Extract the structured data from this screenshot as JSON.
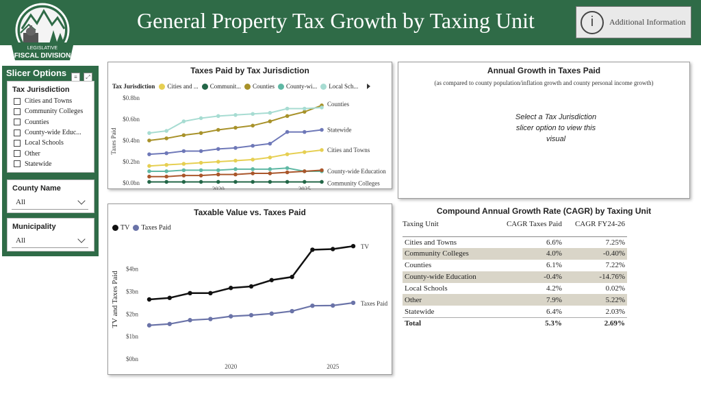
{
  "header": {
    "title": "General Property Tax Growth by Taxing Unit",
    "info_button_label": "Additional Information",
    "info_icon": "i",
    "logo_top": "LEGISLATIVE",
    "logo_bottom": "FISCAL DIVISION"
  },
  "colors": {
    "brand_green": "#2f6b47",
    "cities": "#e6cf52",
    "community_colleges": "#236647",
    "counties": "#a8922a",
    "countywide_education": "#5fb8a4",
    "local_schools": "#a7dcd2",
    "other": "#a9562b",
    "statewide": "#6e78b8",
    "tv": "#111111",
    "taxes_paid": "#6a73a8"
  },
  "slicer": {
    "title": "Slicer Options",
    "tax_jurisdiction": {
      "label": "Tax Jurisdiction",
      "options": [
        "Cities and Towns",
        "Community Colleges",
        "Counties",
        "County-wide Educ...",
        "Local Schools",
        "Other",
        "Statewide"
      ]
    },
    "county": {
      "label": "County Name",
      "value": "All"
    },
    "municipality": {
      "label": "Municipality",
      "value": "All"
    }
  },
  "chart1": {
    "title": "Taxes Paid by Tax Jurisdiction",
    "legend_title": "Tax Jurisdiction",
    "legend": [
      "Cities and ...",
      "Communit...",
      "Counties",
      "County-wi...",
      "Local Sch..."
    ],
    "ylabel": "Taxes Paid",
    "end_labels": [
      "Counties",
      "Statewide",
      "Cities and Towns",
      "County-wide Education",
      "Community Colleges"
    ]
  },
  "chart2": {
    "title": "Annual Growth in Taxes Paid",
    "subtitle": "(as compared to county population/inflation growth and county personal income growth)",
    "message": "Select a Tax Jurisdiction slicer option to view this visual"
  },
  "chart3": {
    "title": "Taxable Value vs. Taxes Paid",
    "legend": [
      "TV",
      "Taxes Paid"
    ],
    "ylabel": "TV and Taxes Paid",
    "end_labels": [
      "TV",
      "Taxes Paid"
    ]
  },
  "chart_data": [
    {
      "type": "line",
      "title": "Taxes Paid by Tax Jurisdiction",
      "xlabel": "",
      "ylabel": "Taxes Paid",
      "x": [
        2016,
        2017,
        2018,
        2019,
        2020,
        2021,
        2022,
        2023,
        2024,
        2025,
        2026
      ],
      "xticks": [
        "2020",
        "2025"
      ],
      "yticks": [
        "$0.0bn",
        "$0.2bn",
        "$0.4bn",
        "$0.6bn",
        "$0.8bn"
      ],
      "ylim": [
        0,
        0.8
      ],
      "series": [
        {
          "name": "Cities and Towns",
          "values": [
            0.16,
            0.17,
            0.18,
            0.19,
            0.2,
            0.21,
            0.22,
            0.24,
            0.27,
            0.29,
            0.31
          ]
        },
        {
          "name": "Community Colleges",
          "values": [
            0.01,
            0.01,
            0.01,
            0.01,
            0.01,
            0.01,
            0.01,
            0.01,
            0.01,
            0.01,
            0.01
          ]
        },
        {
          "name": "Counties",
          "values": [
            0.4,
            0.42,
            0.45,
            0.47,
            0.5,
            0.52,
            0.54,
            0.58,
            0.63,
            0.67,
            0.73
          ]
        },
        {
          "name": "County-wide Education",
          "values": [
            0.11,
            0.11,
            0.12,
            0.12,
            0.12,
            0.13,
            0.13,
            0.13,
            0.14,
            0.11,
            0.11
          ]
        },
        {
          "name": "Local Schools",
          "values": [
            0.47,
            0.49,
            0.58,
            0.61,
            0.63,
            0.64,
            0.65,
            0.66,
            0.7,
            0.7,
            0.71
          ]
        },
        {
          "name": "Other",
          "values": [
            0.06,
            0.06,
            0.07,
            0.07,
            0.08,
            0.08,
            0.09,
            0.09,
            0.1,
            0.11,
            0.12
          ]
        },
        {
          "name": "Statewide",
          "values": [
            0.27,
            0.28,
            0.3,
            0.3,
            0.32,
            0.33,
            0.35,
            0.37,
            0.48,
            0.48,
            0.5
          ]
        }
      ]
    },
    {
      "type": "line",
      "title": "Taxable Value vs. Taxes Paid",
      "xlabel": "",
      "ylabel": "TV and Taxes Paid",
      "x": [
        2016,
        2017,
        2018,
        2019,
        2020,
        2021,
        2022,
        2023,
        2024,
        2025,
        2026
      ],
      "xticks": [
        "2020",
        "2025"
      ],
      "yticks": [
        "$0bn",
        "$1bn",
        "$2bn",
        "$3bn",
        "$4bn"
      ],
      "ylim": [
        0,
        5.3
      ],
      "series": [
        {
          "name": "TV",
          "values": [
            2.65,
            2.72,
            2.93,
            2.93,
            3.16,
            3.23,
            3.51,
            3.65,
            4.86,
            4.89,
            5.02
          ]
        },
        {
          "name": "Taxes Paid",
          "values": [
            1.5,
            1.56,
            1.73,
            1.78,
            1.9,
            1.95,
            2.02,
            2.13,
            2.37,
            2.38,
            2.5
          ]
        }
      ]
    },
    {
      "type": "table",
      "title": "Compound Annual Growth Rate (CAGR) by Taxing Unit",
      "columns": [
        "Taxing Unit",
        "CAGR Taxes Paid",
        "CAGR FY24-26"
      ],
      "rows": [
        [
          "Cities and Towns",
          "6.6%",
          "7.25%"
        ],
        [
          "Community Colleges",
          "4.0%",
          "-0.40%"
        ],
        [
          "Counties",
          "6.1%",
          "7.22%"
        ],
        [
          "County-wide Education",
          "-0.4%",
          "-14.76%"
        ],
        [
          "Local Schools",
          "4.2%",
          "0.02%"
        ],
        [
          "Other",
          "7.9%",
          "5.22%"
        ],
        [
          "Statewide",
          "6.4%",
          "2.03%"
        ]
      ],
      "total": [
        "Total",
        "5.3%",
        "2.69%"
      ]
    }
  ]
}
